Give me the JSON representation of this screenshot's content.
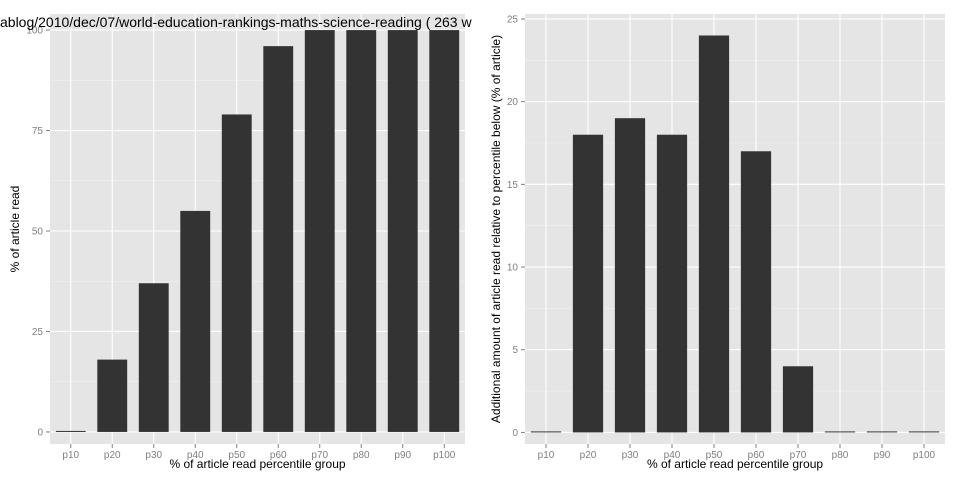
{
  "chart_data": [
    {
      "type": "bar",
      "title": "ablog/2010/dec/07/world-education-rankings-maths-science-reading ( 263 w",
      "xlabel": "% of article read percentile group",
      "ylabel": "% of article read",
      "categories": [
        "p10",
        "p20",
        "p30",
        "p40",
        "p50",
        "p60",
        "p70",
        "p80",
        "p90",
        "p100"
      ],
      "values": [
        0,
        18,
        37,
        55,
        79,
        96,
        100,
        100,
        100,
        100
      ],
      "ylim": [
        -3,
        104
      ],
      "yticks": [
        0,
        25,
        50,
        75,
        100
      ],
      "ytick_labels": [
        "0",
        "25",
        "50",
        "75",
        "100"
      ],
      "bar_color": "#333333",
      "panel_color": "#e5e5e5",
      "grid": true
    },
    {
      "type": "bar",
      "title": "",
      "xlabel": "% of article read percentile group",
      "ylabel": "Additional amount of article read relative to percentile below (% of article)",
      "categories": [
        "p10",
        "p20",
        "p30",
        "p40",
        "p50",
        "p60",
        "p70",
        "p80",
        "p90",
        "p100"
      ],
      "values": [
        0,
        18,
        19,
        18,
        24,
        17,
        4,
        0,
        0,
        0
      ],
      "ylim": [
        -0.7,
        25.3
      ],
      "yticks": [
        0,
        5,
        10,
        15,
        20,
        25
      ],
      "ytick_labels": [
        "0",
        "5",
        "10",
        "15",
        "20",
        "25"
      ],
      "bar_color": "#333333",
      "panel_color": "#e5e5e5",
      "grid": true
    }
  ]
}
